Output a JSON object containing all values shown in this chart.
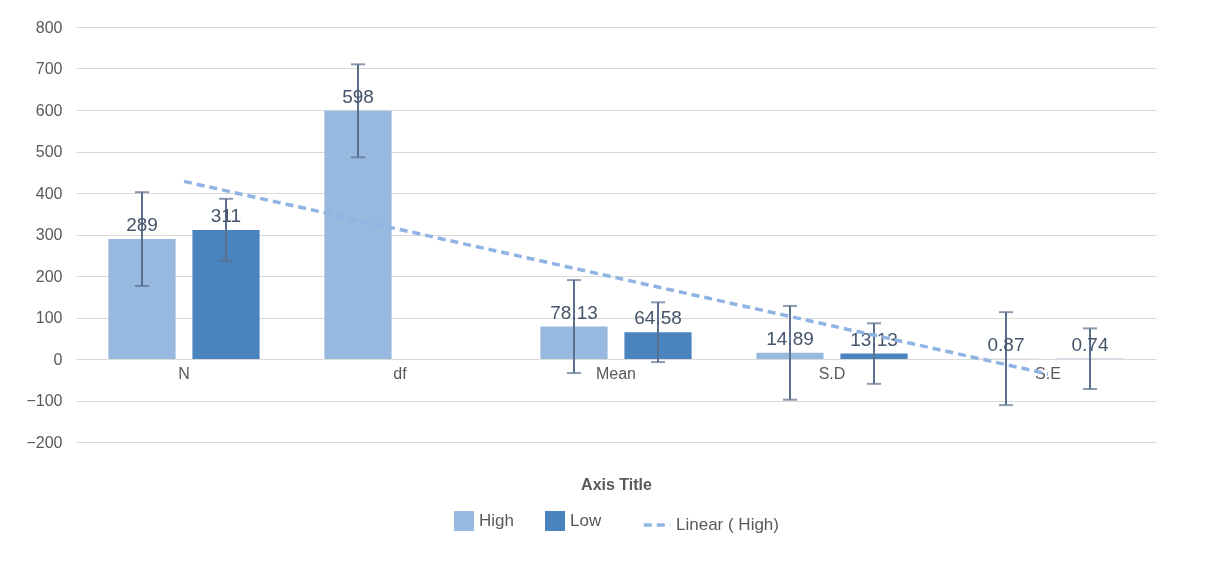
{
  "chart_data": {
    "type": "bar",
    "categories": [
      "N",
      "df",
      "Mean",
      "S.D",
      "S.E"
    ],
    "series": [
      {
        "name": "High",
        "color": "#97b9e0",
        "values": [
          289,
          598,
          78.13,
          14.89,
          0.87
        ],
        "value_labels": [
          "289",
          "598",
          "78.13",
          "14.89",
          "0.87"
        ],
        "errors": [
          113,
          112,
          112,
          113,
          112
        ]
      },
      {
        "name": "Low",
        "color": "#4a84bf",
        "values": [
          311,
          null,
          64.58,
          13.13,
          0.74
        ],
        "value_labels": [
          "311",
          null,
          "64.58",
          "13.13",
          "0.74"
        ],
        "errors": [
          75,
          null,
          72,
          73,
          73
        ]
      },
      {
        "name": "Linear ( High)",
        "type": "line",
        "color": "#8fb4e3",
        "line_style": "dashed",
        "values": [
          428,
          312,
          196,
          80,
          -36
        ]
      }
    ],
    "xlabel": "Axis Title",
    "ylim": [
      -200,
      800
    ],
    "yticks": [
      -200,
      -100,
      0,
      100,
      200,
      300,
      400,
      500,
      600,
      700,
      800
    ],
    "grid": "y",
    "legend": "bottom"
  }
}
